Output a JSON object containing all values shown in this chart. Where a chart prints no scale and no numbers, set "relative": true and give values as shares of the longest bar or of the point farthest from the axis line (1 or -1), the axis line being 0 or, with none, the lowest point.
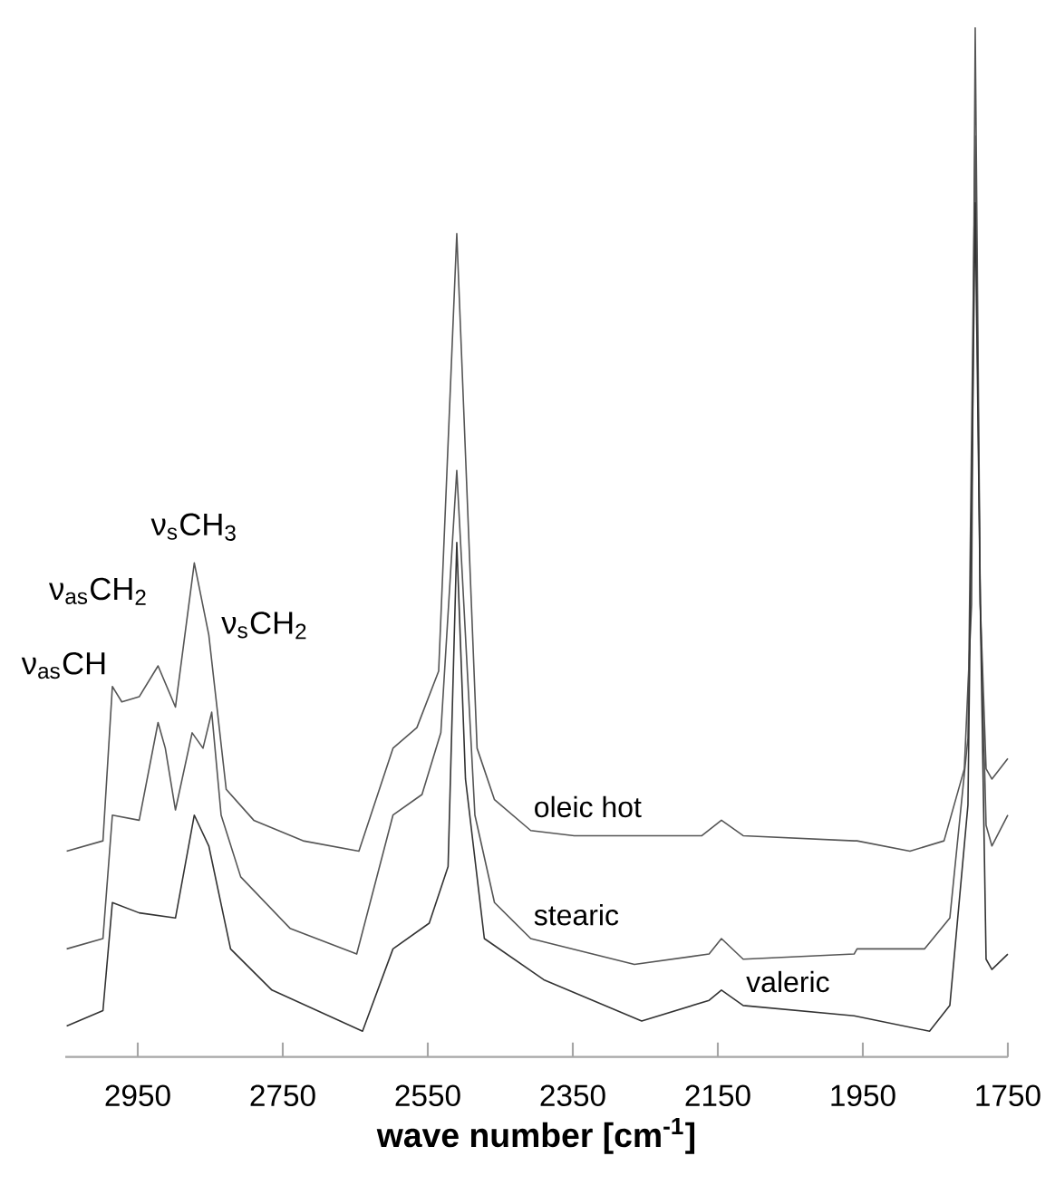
{
  "chart_data": {
    "type": "line",
    "relative": true,
    "xlabel": "wave number [cm$^{-1}$]",
    "xlim": [
      3050,
      1750
    ],
    "xticks": [
      2950,
      2750,
      2550,
      2350,
      2150,
      1950,
      1750
    ],
    "annotations": [
      {
        "text": "ν$_{as}$CH",
        "x": 2985,
        "y": 0.36
      },
      {
        "text": "ν$_{as}$CH$_{2}$",
        "x": 2922,
        "y": 0.38
      },
      {
        "text": "ν$_{s}$CH$_{3}$",
        "x": 2872,
        "y": 0.48
      },
      {
        "text": "ν$_{s}$CH$_{2}$",
        "x": 2852,
        "y": 0.41
      }
    ],
    "series": [
      {
        "name": "oleic hot",
        "color": "#555555",
        "x": [
          3048,
          2998,
          2985,
          2972,
          2948,
          2922,
          2898,
          2872,
          2852,
          2828,
          2790,
          2722,
          2645,
          2598,
          2565,
          2535,
          2510,
          2482,
          2458,
          2408,
          2348,
          2172,
          2145,
          2115,
          1962,
          1958,
          1885,
          1838,
          1810,
          1800,
          1795,
          1788,
          1780,
          1772,
          1750
        ],
        "values": [
          0.2,
          0.21,
          0.36,
          0.345,
          0.35,
          0.38,
          0.34,
          0.48,
          0.41,
          0.26,
          0.23,
          0.21,
          0.2,
          0.3,
          0.32,
          0.375,
          0.8,
          0.3,
          0.25,
          0.22,
          0.215,
          0.215,
          0.23,
          0.215,
          0.21,
          0.21,
          0.2,
          0.21,
          0.28,
          0.44,
          1.0,
          0.44,
          0.28,
          0.27,
          0.29
        ]
      },
      {
        "name": "stearic",
        "color": "#555555",
        "x": [
          3048,
          2998,
          2985,
          2948,
          2922,
          2912,
          2898,
          2875,
          2860,
          2848,
          2835,
          2808,
          2740,
          2648,
          2598,
          2558,
          2532,
          2510,
          2485,
          2458,
          2408,
          2265,
          2162,
          2145,
          2115,
          1962,
          1958,
          1865,
          1830,
          1805,
          1795,
          1788,
          1780,
          1772,
          1750
        ],
        "values": [
          0.105,
          0.115,
          0.235,
          0.23,
          0.325,
          0.3,
          0.24,
          0.315,
          0.3,
          0.335,
          0.235,
          0.175,
          0.125,
          0.1,
          0.235,
          0.255,
          0.315,
          0.57,
          0.235,
          0.15,
          0.115,
          0.09,
          0.1,
          0.115,
          0.095,
          0.1,
          0.105,
          0.105,
          0.135,
          0.31,
          0.895,
          0.44,
          0.225,
          0.205,
          0.235
        ]
      },
      {
        "name": "valeric",
        "color": "#333333",
        "x": [
          3048,
          2998,
          2985,
          2948,
          2898,
          2872,
          2852,
          2822,
          2765,
          2640,
          2598,
          2548,
          2522,
          2510,
          2498,
          2472,
          2390,
          2255,
          2162,
          2145,
          2115,
          1962,
          1858,
          1830,
          1805,
          1795,
          1788,
          1780,
          1772,
          1750
        ],
        "values": [
          0.03,
          0.045,
          0.15,
          0.14,
          0.135,
          0.235,
          0.205,
          0.105,
          0.065,
          0.025,
          0.105,
          0.13,
          0.185,
          0.5,
          0.27,
          0.115,
          0.075,
          0.035,
          0.055,
          0.065,
          0.05,
          0.04,
          0.025,
          0.05,
          0.245,
          0.83,
          0.44,
          0.095,
          0.085,
          0.1
        ]
      }
    ]
  }
}
